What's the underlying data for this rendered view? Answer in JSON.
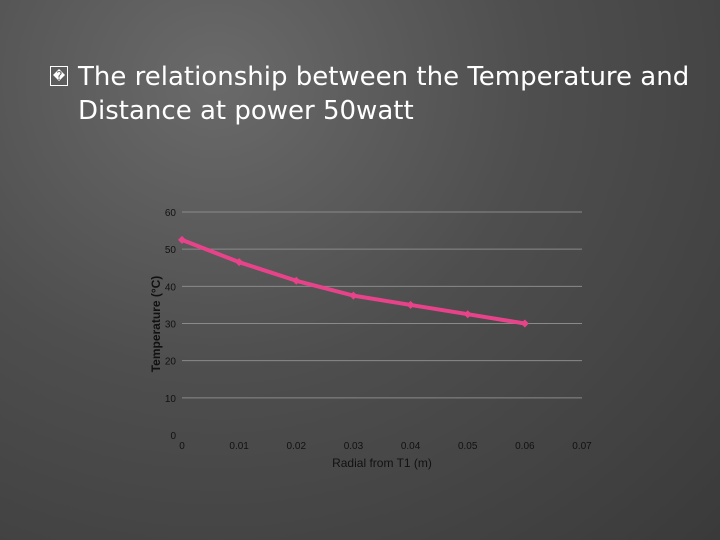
{
  "slide": {
    "bullet_glyph": "�",
    "title": "The relationship between the Temperature and Distance at power 50watt"
  },
  "chart_data": {
    "type": "line",
    "title": "",
    "xlabel": "Radial from T1 (m)",
    "ylabel": "Temperature (°C)",
    "xlim": [
      0,
      0.07
    ],
    "ylim": [
      0,
      60
    ],
    "x_ticks": [
      "0",
      "0.01",
      "0.02",
      "0.03",
      "0.04",
      "0.05",
      "0.06",
      "0.07"
    ],
    "y_ticks": [
      "0",
      "10",
      "20",
      "30",
      "40",
      "50",
      "60"
    ],
    "grid": true,
    "series": [
      {
        "name": "Temperature",
        "color": "#e8438a",
        "x": [
          0,
          0.01,
          0.02,
          0.03,
          0.04,
          0.05,
          0.06
        ],
        "y": [
          52.5,
          46.5,
          41.5,
          37.5,
          35,
          32.5,
          30
        ]
      }
    ]
  }
}
